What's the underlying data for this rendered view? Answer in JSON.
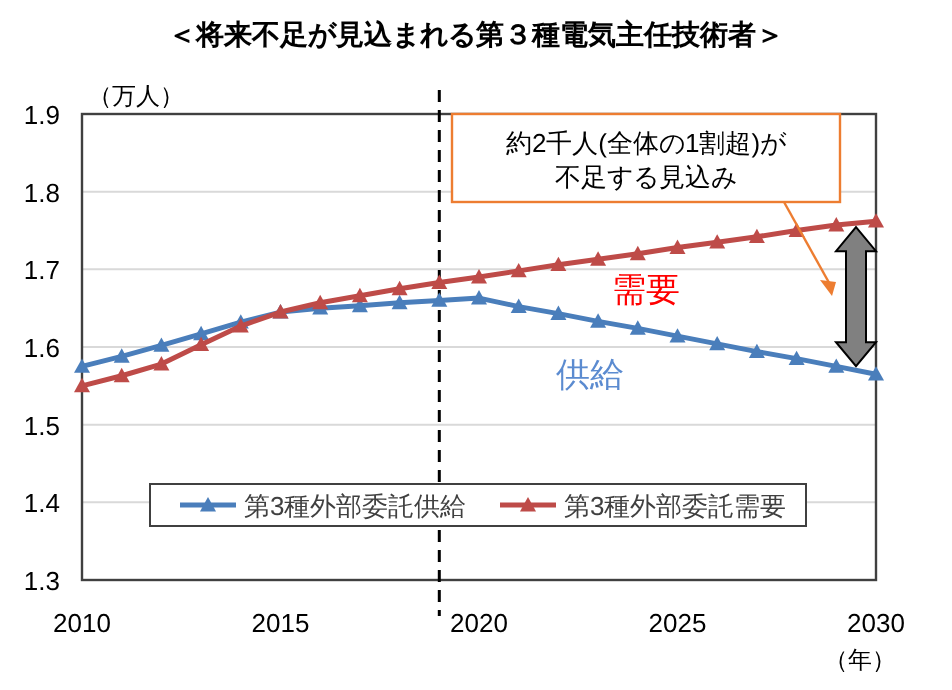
{
  "chart_data": {
    "type": "line",
    "title": "＜将来不足が見込まれる第３種電気主任技術者＞",
    "ylabel": "（万人）",
    "xlabel": "（年）",
    "x": [
      2010,
      2011,
      2012,
      2013,
      2014,
      2015,
      2016,
      2017,
      2018,
      2019,
      2020,
      2021,
      2022,
      2023,
      2024,
      2025,
      2026,
      2027,
      2028,
      2029,
      2030
    ],
    "series": [
      {
        "name": "第3種外部委託供給",
        "color": "#4a7ebb",
        "values": [
          1.575,
          1.588,
          1.602,
          1.617,
          1.632,
          1.645,
          1.65,
          1.653,
          1.657,
          1.66,
          1.663,
          1.652,
          1.643,
          1.633,
          1.624,
          1.614,
          1.604,
          1.594,
          1.585,
          1.575,
          1.565
        ]
      },
      {
        "name": "第3種外部委託需要",
        "color": "#be4b48",
        "values": [
          1.55,
          1.563,
          1.578,
          1.603,
          1.627,
          1.645,
          1.657,
          1.666,
          1.675,
          1.683,
          1.69,
          1.698,
          1.706,
          1.713,
          1.72,
          1.728,
          1.735,
          1.742,
          1.75,
          1.757,
          1.762
        ]
      }
    ],
    "xlim": [
      2010,
      2030
    ],
    "xticks": [
      2010,
      2015,
      2020,
      2025,
      2030
    ],
    "ylim": [
      1.3,
      1.9
    ],
    "yticks": [
      1.3,
      1.4,
      1.5,
      1.6,
      1.7,
      1.8,
      1.9
    ],
    "ref_lines": [
      {
        "axis": "x",
        "value": 2019,
        "color": "#000000",
        "line_style": "dashed"
      }
    ],
    "annotations": [
      "約2千人(全体の1割超)が不足する見込み",
      "需要",
      "供給"
    ],
    "grid": "y",
    "legend": "bottom",
    "marker": "triangle",
    "line_style": "solid"
  }
}
